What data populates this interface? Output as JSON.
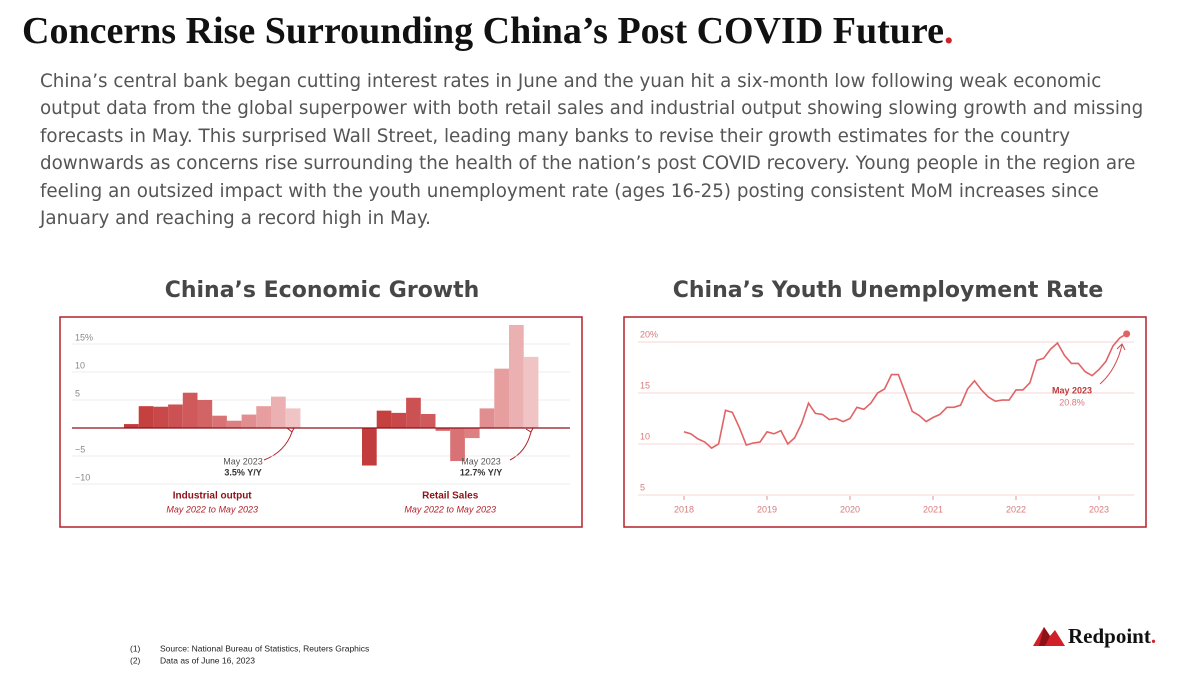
{
  "title": "Concerns Rise Surrounding China’s Post COVID Future",
  "title_mark": ".",
  "body": "China’s central bank began cutting interest rates in June and the yuan hit a six-month low following weak economic output data from the global superpower with both retail sales and industrial output showing slowing growth and missing forecasts in May. This surprised Wall Street, leading many banks to revise their growth estimates for the country downwards as concerns rise surrounding the health of the nation’s post COVID recovery. Young people in the region are feeling an outsized impact with the youth unemployment rate (ages 16-25) posting consistent MoM increases since January and reaching a record high in May.",
  "chart_data": [
    {
      "type": "bar",
      "title": "China’s Economic Growth",
      "ylim": [
        -12,
        19
      ],
      "yticks": [
        {
          "value": 15,
          "label": "15%"
        },
        10,
        5,
        {
          "value": -5,
          "label": "−5"
        },
        {
          "value": -10,
          "label": "−10"
        }
      ],
      "grid": true,
      "series": [
        {
          "name": "Industrial output",
          "subtitle": "May 2022 to May 2023",
          "values": [
            0.7,
            3.9,
            3.8,
            4.2,
            6.3,
            5.0,
            2.2,
            1.3,
            2.4,
            3.9,
            5.6,
            3.5
          ],
          "colors": [
            "#c23b3d",
            "#c5413f",
            "#c9494b",
            "#cc5153",
            "#cf595b",
            "#d36466",
            "#d87274",
            "#dc8082",
            "#e18e90",
            "#e69e9f",
            "#ebb0b1",
            "#f0c3c4"
          ],
          "annotation": [
            "May 2023",
            "3.5% Y/Y"
          ]
        },
        {
          "name": "Retail Sales",
          "subtitle": "May 2022 to May 2023",
          "values": [
            -6.7,
            3.1,
            2.7,
            5.4,
            2.5,
            -0.5,
            -5.9,
            -1.8,
            3.5,
            10.6,
            18.4,
            12.7
          ],
          "colors": [
            "#c23b3d",
            "#c5413f",
            "#c9494b",
            "#cc5153",
            "#cf595b",
            "#d36466",
            "#d87274",
            "#dc8082",
            "#e18e90",
            "#e69e9f",
            "#ebb0b1",
            "#f0c3c4"
          ],
          "annotation": [
            "May 2023",
            "12.7% Y/Y"
          ]
        }
      ]
    },
    {
      "type": "line",
      "title": "China’s Youth Unemployment Rate",
      "color": "#e06466",
      "xlim": [
        2017.8,
        2023.5
      ],
      "xticks": [
        2018,
        2019,
        2020,
        2021,
        2022,
        2023
      ],
      "ylim": [
        3.5,
        21.5
      ],
      "yticks": [
        {
          "value": 20,
          "label": "20%"
        },
        15,
        10,
        5
      ],
      "grid": true,
      "x": [
        2018,
        2018.083,
        2018.167,
        2018.25,
        2018.333,
        2018.417,
        2018.5,
        2018.583,
        2018.667,
        2018.75,
        2018.833,
        2018.917,
        2019,
        2019.083,
        2019.167,
        2019.25,
        2019.333,
        2019.417,
        2019.5,
        2019.583,
        2019.667,
        2019.75,
        2019.833,
        2019.917,
        2020,
        2020.083,
        2020.167,
        2020.25,
        2020.333,
        2020.417,
        2020.5,
        2020.583,
        2020.667,
        2020.75,
        2020.833,
        2020.917,
        2021,
        2021.083,
        2021.167,
        2021.25,
        2021.333,
        2021.417,
        2021.5,
        2021.583,
        2021.667,
        2021.75,
        2021.833,
        2021.917,
        2022,
        2022.083,
        2022.167,
        2022.25,
        2022.333,
        2022.417,
        2022.5,
        2022.583,
        2022.667,
        2022.75,
        2022.833,
        2022.917,
        2023,
        2023.083,
        2023.167,
        2023.25,
        2023.333
      ],
      "values": [
        11.2,
        11.0,
        10.5,
        10.2,
        9.6,
        10.0,
        13.3,
        13.1,
        11.6,
        9.9,
        10.1,
        10.2,
        11.2,
        11.0,
        11.3,
        10.0,
        10.6,
        12.0,
        14.0,
        13.0,
        12.9,
        12.4,
        12.5,
        12.2,
        12.5,
        13.6,
        13.4,
        14.0,
        15.0,
        15.4,
        16.8,
        16.8,
        15.0,
        13.2,
        12.8,
        12.2,
        12.6,
        12.9,
        13.6,
        13.6,
        13.8,
        15.4,
        16.2,
        15.3,
        14.6,
        14.2,
        14.3,
        14.3,
        15.3,
        15.3,
        16.0,
        18.2,
        18.4,
        19.3,
        19.9,
        18.7,
        17.9,
        17.9,
        17.1,
        16.7,
        17.3,
        18.1,
        19.6,
        20.4,
        20.8
      ],
      "annotation": {
        "title": "May 2023",
        "value_label": "20.8%"
      }
    }
  ],
  "footnotes": [
    {
      "number": "(1)",
      "text": "Source: National Bureau of Statistics, Reuters Graphics"
    },
    {
      "number": "(2)",
      "text": "Data as of June 16, 2023"
    }
  ],
  "logo": "Redpoint",
  "logo_mark": "."
}
